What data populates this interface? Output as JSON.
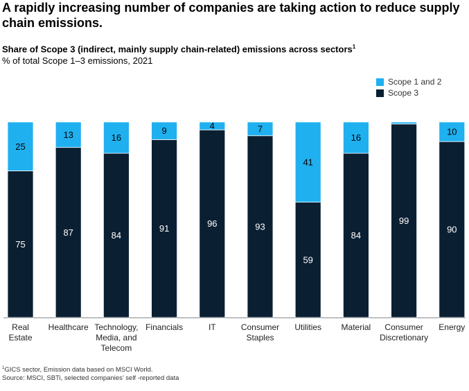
{
  "headline": "A rapidly increasing number of companies are taking action to reduce supply chain emissions.",
  "chart_data": {
    "type": "bar",
    "stacked": true,
    "title": "Share of Scope 3 (indirect, mainly supply chain-related) emissions across sectors",
    "title_footnote_marker": "1",
    "subtitle": "% of total Scope 1–3 emissions, 2021",
    "categories": [
      "Real Estate",
      "Healthcare",
      "Technology, Media, and Telecom",
      "Financials",
      "IT",
      "Consumer Staples",
      "Utilities",
      "Material",
      "Consumer Discretionary",
      "Energy"
    ],
    "category_lines": [
      [
        "Real",
        "Estate"
      ],
      [
        "Healthcare"
      ],
      [
        "Technology,",
        "Media, and",
        "Telecom"
      ],
      [
        "Financials"
      ],
      [
        "IT"
      ],
      [
        "Consumer",
        "Staples"
      ],
      [
        "Utilities"
      ],
      [
        "Material"
      ],
      [
        "Consumer",
        "Discretionary"
      ],
      [
        "Energy"
      ]
    ],
    "series": [
      {
        "name": "Scope 3",
        "color": "#0b1f33",
        "values": [
          75,
          87,
          84,
          91,
          96,
          93,
          59,
          84,
          99,
          90
        ]
      },
      {
        "name": "Scope 1 and 2",
        "color": "#1fb0f0",
        "values": [
          25,
          13,
          16,
          9,
          4,
          7,
          41,
          16,
          1,
          10
        ]
      }
    ],
    "value_labels": {
      "Scope 3": [
        "75",
        "87",
        "84",
        "91",
        "96",
        "93",
        "59",
        "84",
        "99",
        "90"
      ],
      "Scope 1 and 2": [
        "25",
        "13",
        "16",
        "9",
        "4",
        "7",
        "41",
        "16",
        "",
        "10"
      ]
    },
    "ylim": [
      0,
      100
    ],
    "legend_position": "top-right",
    "grid": false
  },
  "legend": [
    {
      "label": "Scope 1 and 2",
      "color": "#1fb0f0"
    },
    {
      "label": "Scope 3",
      "color": "#0b1f33"
    }
  ],
  "footnotes": {
    "marker": "1",
    "note": "GICS sector, Emission data based on MSCI World.",
    "source": "Source: MSCI, SBTi, selected companies’ self -reported data"
  }
}
